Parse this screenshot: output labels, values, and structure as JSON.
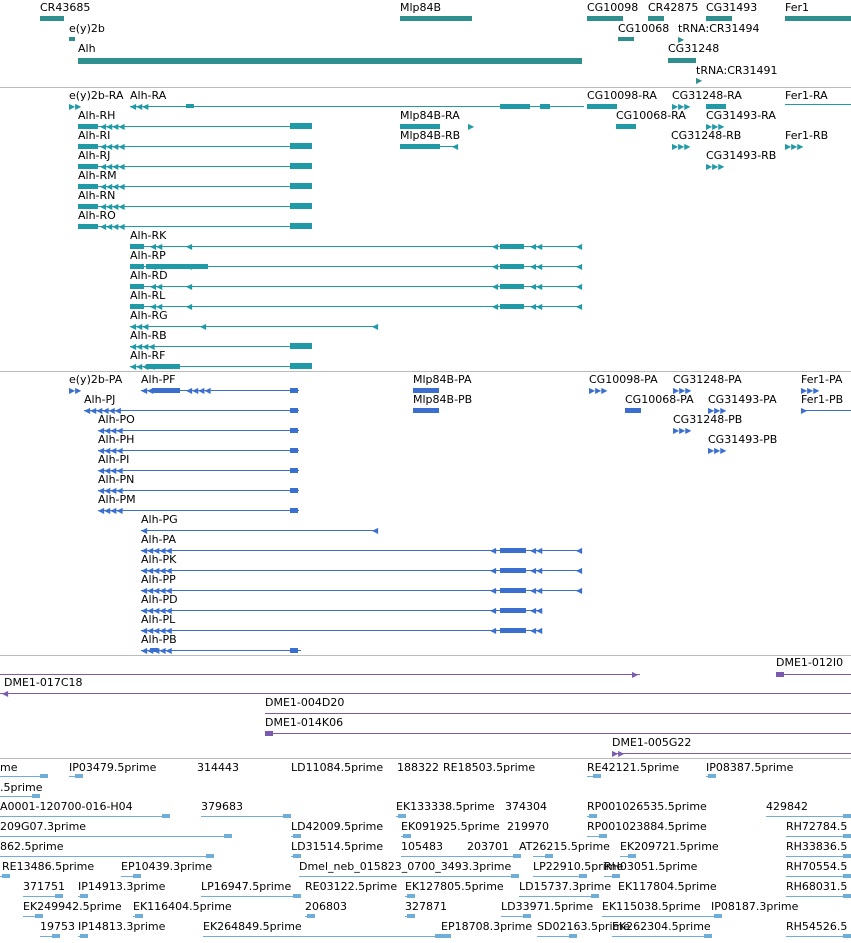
{
  "colors": {
    "gene": "#2f8f8f",
    "rna": "#1f9aa6",
    "protein": "#3a6fd0",
    "clone": "#7a5bb0",
    "est": "#6faed9",
    "separator": "#bbbbbb"
  },
  "genes": {
    "labels": [
      "CR43685",
      "Mlp84B",
      "CG10098",
      "CR42875",
      "CG31493",
      "Fer1",
      "e(y)2b",
      "CG10068",
      "tRNA:CR31494",
      "Alh",
      "CG31248",
      "tRNA:CR31491"
    ]
  },
  "rna": {
    "labels": [
      "e(y)2b-RA",
      "Alh-RA",
      "CG10098-RA",
      "CG31248-RA",
      "Fer1-RA",
      "Alh-RH",
      "Mlp84B-RA",
      "CG10068-RA",
      "CG31493-RA",
      "Alh-RI",
      "Mlp84B-RB",
      "CG31248-RB",
      "Fer1-RB",
      "Alh-RJ",
      "CG31493-RB",
      "Alh-RM",
      "Alh-RN",
      "Alh-RO",
      "Alh-RK",
      "Alh-RP",
      "Alh-RD",
      "Alh-RL",
      "Alh-RG",
      "Alh-RB",
      "Alh-RF"
    ]
  },
  "proteins": {
    "labels": [
      "e(y)2b-PA",
      "Alh-PF",
      "Mlp84B-PA",
      "CG10098-PA",
      "CG31248-PA",
      "Fer1-PA",
      "Alh-PJ",
      "Mlp84B-PB",
      "CG10068-PA",
      "CG31493-PA",
      "Fer1-PB",
      "Alh-PO",
      "CG31248-PB",
      "Alh-PH",
      "CG31493-PB",
      "Alh-PI",
      "Alh-PN",
      "Alh-PM",
      "Alh-PG",
      "Alh-PA",
      "Alh-PK",
      "Alh-PP",
      "Alh-PD",
      "Alh-PL",
      "Alh-PB"
    ]
  },
  "clones": {
    "labels": [
      "DME1-012I0",
      "DME1-017C18",
      "DME1-004D20",
      "DME1-014K06",
      "DME1-005G22"
    ]
  },
  "ests": {
    "labels": [
      "me",
      "IP03479.5prime",
      "314443",
      "LD11084.5prime",
      "188322",
      "RE18503.5prime",
      "RE42121.5prime",
      "IP08387.5prime",
      ".5prime",
      "A0001-120700-016-H04",
      "379683",
      "EK133338.5prime",
      "374304",
      "RP001026535.5prime",
      "429842",
      "209G07.3prime",
      "LD42009.5prime",
      "EK091925.5prime",
      "219970",
      "RP001023884.5prime",
      "RH72784.5",
      "862.5prime",
      "LD31514.5prime",
      "105483",
      "203701",
      "AT26215.5prime",
      "EK209721.5prime",
      "RH33836.5",
      "RE13486.5prime",
      "EP10439.3prime",
      "Dmel_neb_015823_0700_3493.3prime",
      "LP22910.5prime",
      "RH03051.5prime",
      "RH70554.5",
      "371751",
      "IP14913.3prime",
      "LP16947.5prime",
      "RE03122.5prime",
      "EK127805.5prime",
      "LD15737.3prime",
      "EK117804.5prime",
      "RH68031.5",
      "EK249942.5prime",
      "EK116404.5prime",
      "206803",
      "327871",
      "LD33971.5prime",
      "EK115038.5prime",
      "IP08187.3prime",
      "19753",
      "IP14813.3prime",
      "EK264849.5prime",
      "EP18708.3prime",
      "SD02163.5prime",
      "EK262304.5prime",
      "RH54526.5"
    ]
  }
}
